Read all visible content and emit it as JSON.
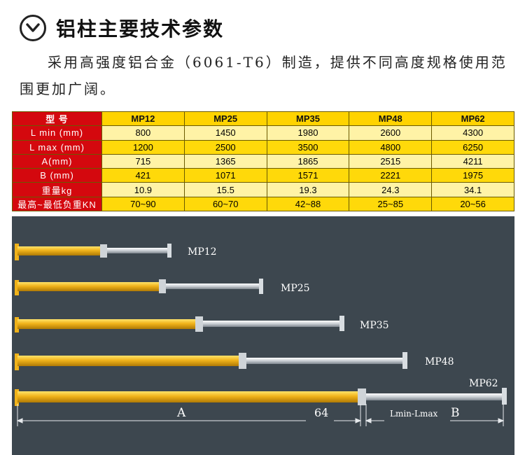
{
  "header": {
    "title": "铝柱主要技术参数",
    "icon": "chevron-down-circle-icon"
  },
  "intro": "采用高强度铝合金（6061-T6）制造，提供不同高度规格使用范围更加广阔。",
  "table": {
    "columns": [
      "型 号",
      "MP12",
      "MP25",
      "MP35",
      "MP48",
      "MP62"
    ],
    "rows": [
      {
        "label": "L min (mm)",
        "values": [
          "800",
          "1450",
          "1980",
          "2600",
          "4300"
        ]
      },
      {
        "label": "L max (mm)",
        "values": [
          "1200",
          "2500",
          "3500",
          "4800",
          "6250"
        ]
      },
      {
        "label": "A(mm)",
        "values": [
          "715",
          "1365",
          "1865",
          "2515",
          "4211"
        ]
      },
      {
        "label": "B (mm)",
        "values": [
          "421",
          "1071",
          "1571",
          "2221",
          "1975"
        ]
      },
      {
        "label": "重量kg",
        "values": [
          "10.9",
          "15.5",
          "19.3",
          "24.3",
          "34.1"
        ]
      },
      {
        "label": "最高~最低负重KN",
        "values": [
          "70~90",
          "60~70",
          "42~88",
          "25~85",
          "20~56"
        ]
      }
    ]
  },
  "photo": {
    "props": [
      {
        "label": "MP12"
      },
      {
        "label": "MP25"
      },
      {
        "label": "MP35"
      },
      {
        "label": "MP48"
      },
      {
        "label": "MP62"
      }
    ],
    "dim_a": "A",
    "dim_64": "64",
    "dim_lmin_lmax": "Lmin-Lmax",
    "dim_b": "B"
  },
  "colors": {
    "header_red": "#d4080e",
    "row_light": "#fff3a6",
    "row_dark": "#ffd90a",
    "photo_bg": "#3d474f",
    "aluminum_gold": "#f0b21a"
  }
}
